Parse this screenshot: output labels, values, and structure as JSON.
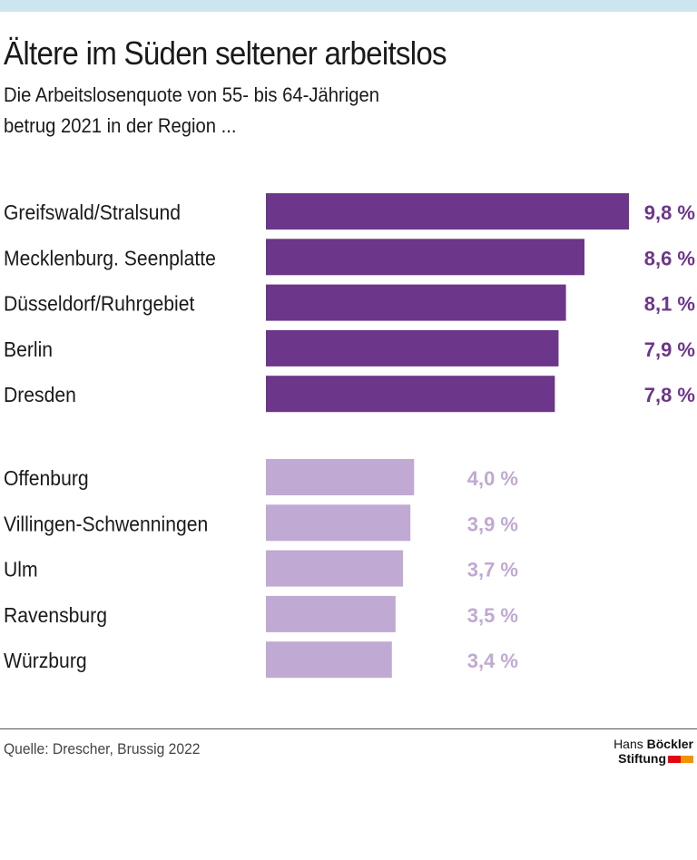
{
  "title": "Ältere im Süden seltener arbeitslos",
  "subtitle_line1": "Die Arbeitslosenquote von 55- bis 64-Jährigen",
  "subtitle_line2": "betrug 2021 in der Region ...",
  "source": "Quelle: Drescher, Brussig 2022",
  "logo": {
    "line1_light": "Hans ",
    "line1_bold": "Böckler",
    "line2": "Stiftung",
    "colors": [
      "#e30613",
      "#f39200"
    ]
  },
  "colors": {
    "high": "#6c368a",
    "low": "#c0a9d2",
    "topbar": "#cde5ee"
  },
  "chart_data": {
    "type": "bar",
    "orientation": "horizontal",
    "unit": "%",
    "xlim": [
      0,
      9.8
    ],
    "grid": false,
    "groups": [
      {
        "color": "#6c368a",
        "categories": [
          "Greifswald/Stralsund",
          "Mecklenburg. Seenplatte",
          "Düsseldorf/Ruhrgebiet",
          "Berlin",
          "Dresden"
        ],
        "values": [
          9.8,
          8.6,
          8.1,
          7.9,
          7.8
        ],
        "labels": [
          "9,8 %",
          "8,6 %",
          "8,1 %",
          "7,9 %",
          "7,8 %"
        ]
      },
      {
        "color": "#c0a9d2",
        "categories": [
          "Offenburg",
          "Villingen-Schwenningen",
          "Ulm",
          "Ravensburg",
          "Würzburg"
        ],
        "values": [
          4.0,
          3.9,
          3.7,
          3.5,
          3.4
        ],
        "labels": [
          "4,0 %",
          "3,9 %",
          "3,7 %",
          "3,5 %",
          "3,4 %"
        ]
      }
    ]
  }
}
